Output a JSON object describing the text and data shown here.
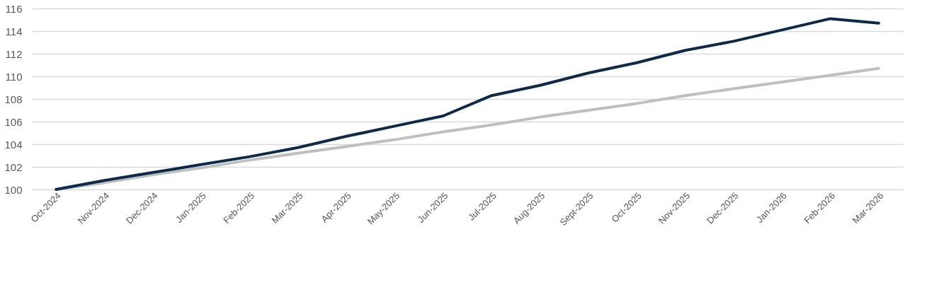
{
  "chart_data": {
    "type": "line",
    "categories": [
      "Oct-2024",
      "Nov-2024",
      "Dec-2024",
      "Jan-2025",
      "Feb-2025",
      "Mar-2025",
      "Apr-2025",
      "May-2025",
      "Jun-2025",
      "Jul-2025",
      "Aug-2025",
      "Sept-2025",
      "Oct-2025",
      "Nov-2025",
      "Dec-2025",
      "Jan-2026",
      "Feb-2026",
      "Mar-2026"
    ],
    "series": [
      {
        "color": "#bfbfbf",
        "values": [
          100,
          100.6,
          101.3,
          101.9,
          102.6,
          103.2,
          103.8,
          104.4,
          105.1,
          105.7,
          106.4,
          107.0,
          107.6,
          108.3,
          108.9,
          109.5,
          110.1,
          110.7
        ]
      },
      {
        "color": "#0d2a4a",
        "values": [
          100,
          100.8,
          101.5,
          102.2,
          102.9,
          103.7,
          104.7,
          105.6,
          106.5,
          108.3,
          109.2,
          110.3,
          111.2,
          112.3,
          113.1,
          114.1,
          115.1,
          114.7
        ]
      }
    ],
    "ylim": [
      100,
      116
    ],
    "yticks": [
      100,
      102,
      104,
      106,
      108,
      110,
      112,
      114,
      116
    ],
    "grid": "y",
    "legend": false,
    "marker": "none",
    "line_style": "solid"
  }
}
